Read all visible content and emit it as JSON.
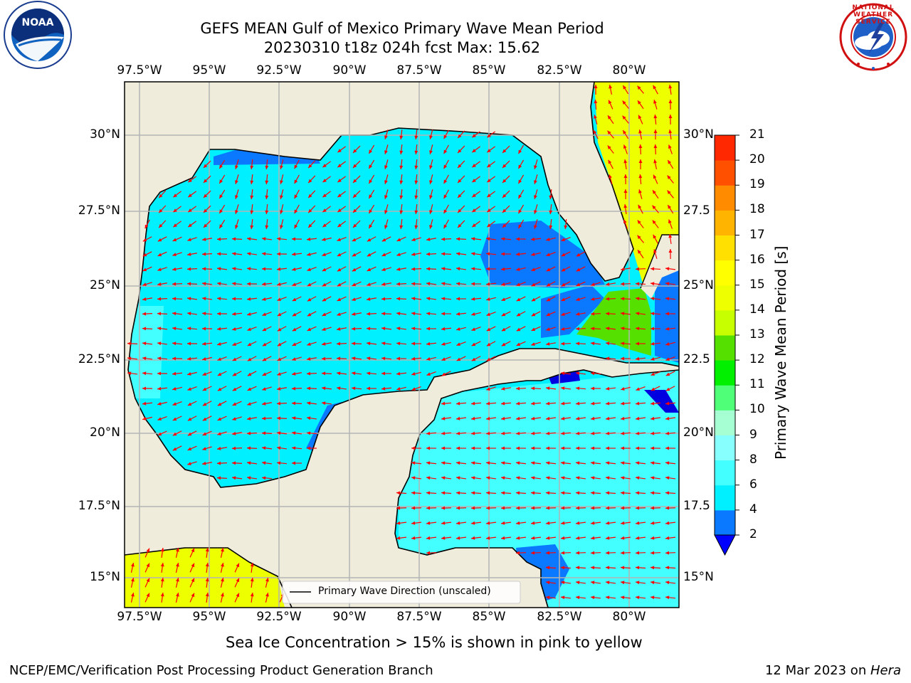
{
  "title": {
    "line1": "GEFS MEAN Gulf of Mexico Primary Wave Mean Period",
    "line2": "20230310 t18z 024h fcst   Max: 15.62"
  },
  "logos": {
    "left": {
      "name": "noaa-logo",
      "text": "NOAA"
    },
    "right": {
      "name": "nws-logo",
      "text": "NATIONAL WEATHER SERVICE"
    }
  },
  "axes": {
    "lon_labels": [
      "97.5°W",
      "95°W",
      "92.5°W",
      "90°W",
      "87.5°W",
      "85°W",
      "82.5°W",
      "80°W"
    ],
    "lat_labels_left": [
      "30°N",
      "27.5°N",
      "25°N",
      "22.5°N",
      "20°N",
      "17.5°N",
      "15°N"
    ],
    "lat_labels_right": [
      "30°N",
      "27.5",
      "25°N",
      "22.5",
      "20°N",
      "17.5",
      "15°N"
    ]
  },
  "legend": {
    "label": "Primary Wave Direction (unscaled)"
  },
  "colorbar": {
    "title": "Primary Wave Mean Period [s]",
    "ticks": [
      "2",
      "4",
      "6",
      "8",
      "9",
      "10",
      "11",
      "12",
      "13",
      "14",
      "15",
      "16",
      "17",
      "18",
      "19",
      "20",
      "21"
    ],
    "colors": [
      "#0000ff",
      "#0a78ff",
      "#00f0ff",
      "#44ffff",
      "#88ffff",
      "#a5ffd2",
      "#50ff78",
      "#00f000",
      "#55e000",
      "#c8ff00",
      "#eeff00",
      "#ffff00",
      "#ffe000",
      "#ffb400",
      "#ff8c00",
      "#ff5000",
      "#ff2800",
      "#ff0000"
    ]
  },
  "notes": {
    "sea_ice": "Sea Ice Concentration > 15% is shown in pink to yellow",
    "credit": "NCEP/EMC/Verification Post Processing Product Generation Branch",
    "date_prefix": "12 Mar 2023 on ",
    "date_host": "Hera"
  },
  "colors": {
    "land": "#efecdc",
    "deep_water": "#00f0ff",
    "mid_water": "#0a78ff",
    "light_water": "#44ffff",
    "peak_water": "#0000e0",
    "atlantic": "#eeff00",
    "green_zone": "#55e000",
    "arrow": "#ff0000",
    "grid": "#b4b4b4"
  }
}
